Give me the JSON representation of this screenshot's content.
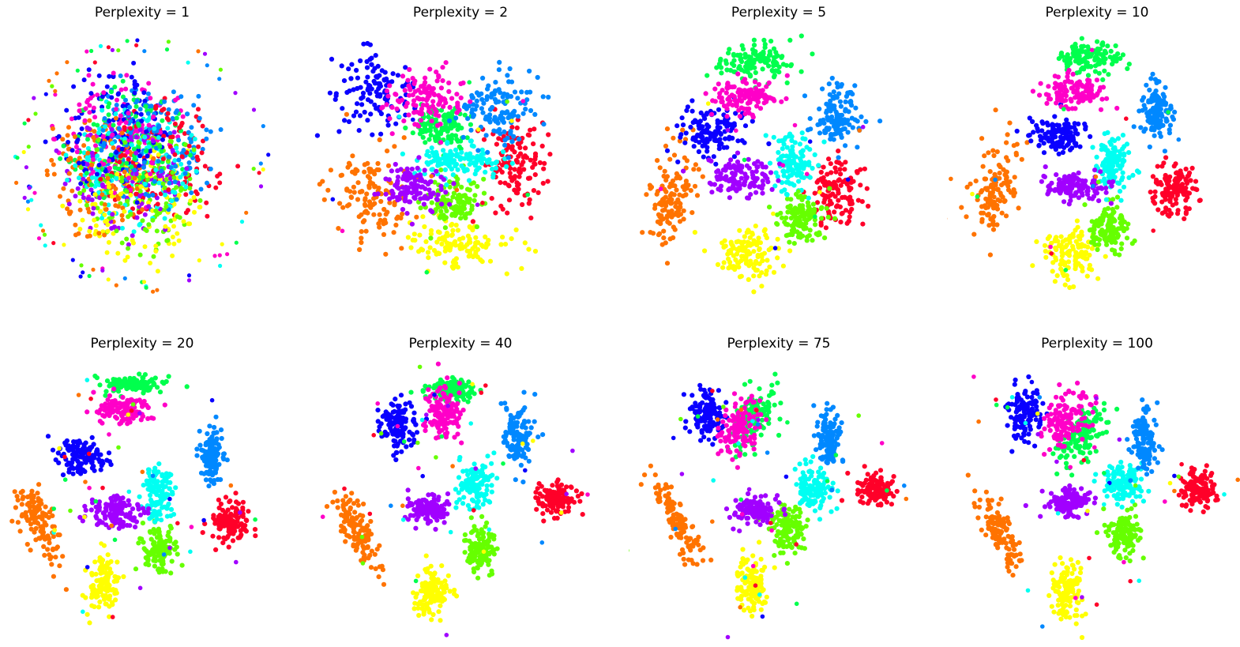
{
  "colors": {
    "digit_palette": [
      "#ff0029",
      "#ff7300",
      "#ffff00",
      "#66ff00",
      "#00ff4d",
      "#00fff2",
      "#0088ff",
      "#0a00ff",
      "#a100ff",
      "#ff00c8"
    ]
  },
  "chart_data": [
    {
      "type": "scatter",
      "title": "Perplexity = 1",
      "perplexity": 1,
      "axes": "off",
      "grid": false,
      "legend": "none"
    },
    {
      "type": "scatter",
      "title": "Perplexity = 2",
      "perplexity": 2,
      "axes": "off",
      "grid": false,
      "legend": "none"
    },
    {
      "type": "scatter",
      "title": "Perplexity = 5",
      "perplexity": 5,
      "axes": "off",
      "grid": false,
      "legend": "none"
    },
    {
      "type": "scatter",
      "title": "Perplexity = 10",
      "perplexity": 10,
      "axes": "off",
      "grid": false,
      "legend": "none"
    },
    {
      "type": "scatter",
      "title": "Perplexity = 20",
      "perplexity": 20,
      "axes": "off",
      "grid": false,
      "legend": "none"
    },
    {
      "type": "scatter",
      "title": "Perplexity = 40",
      "perplexity": 40,
      "axes": "off",
      "grid": false,
      "legend": "none"
    },
    {
      "type": "scatter",
      "title": "Perplexity = 75",
      "perplexity": 75,
      "axes": "off",
      "grid": false,
      "legend": "none"
    },
    {
      "type": "scatter",
      "title": "Perplexity = 100",
      "perplexity": 100,
      "axes": "off",
      "grid": false,
      "legend": "none"
    }
  ]
}
